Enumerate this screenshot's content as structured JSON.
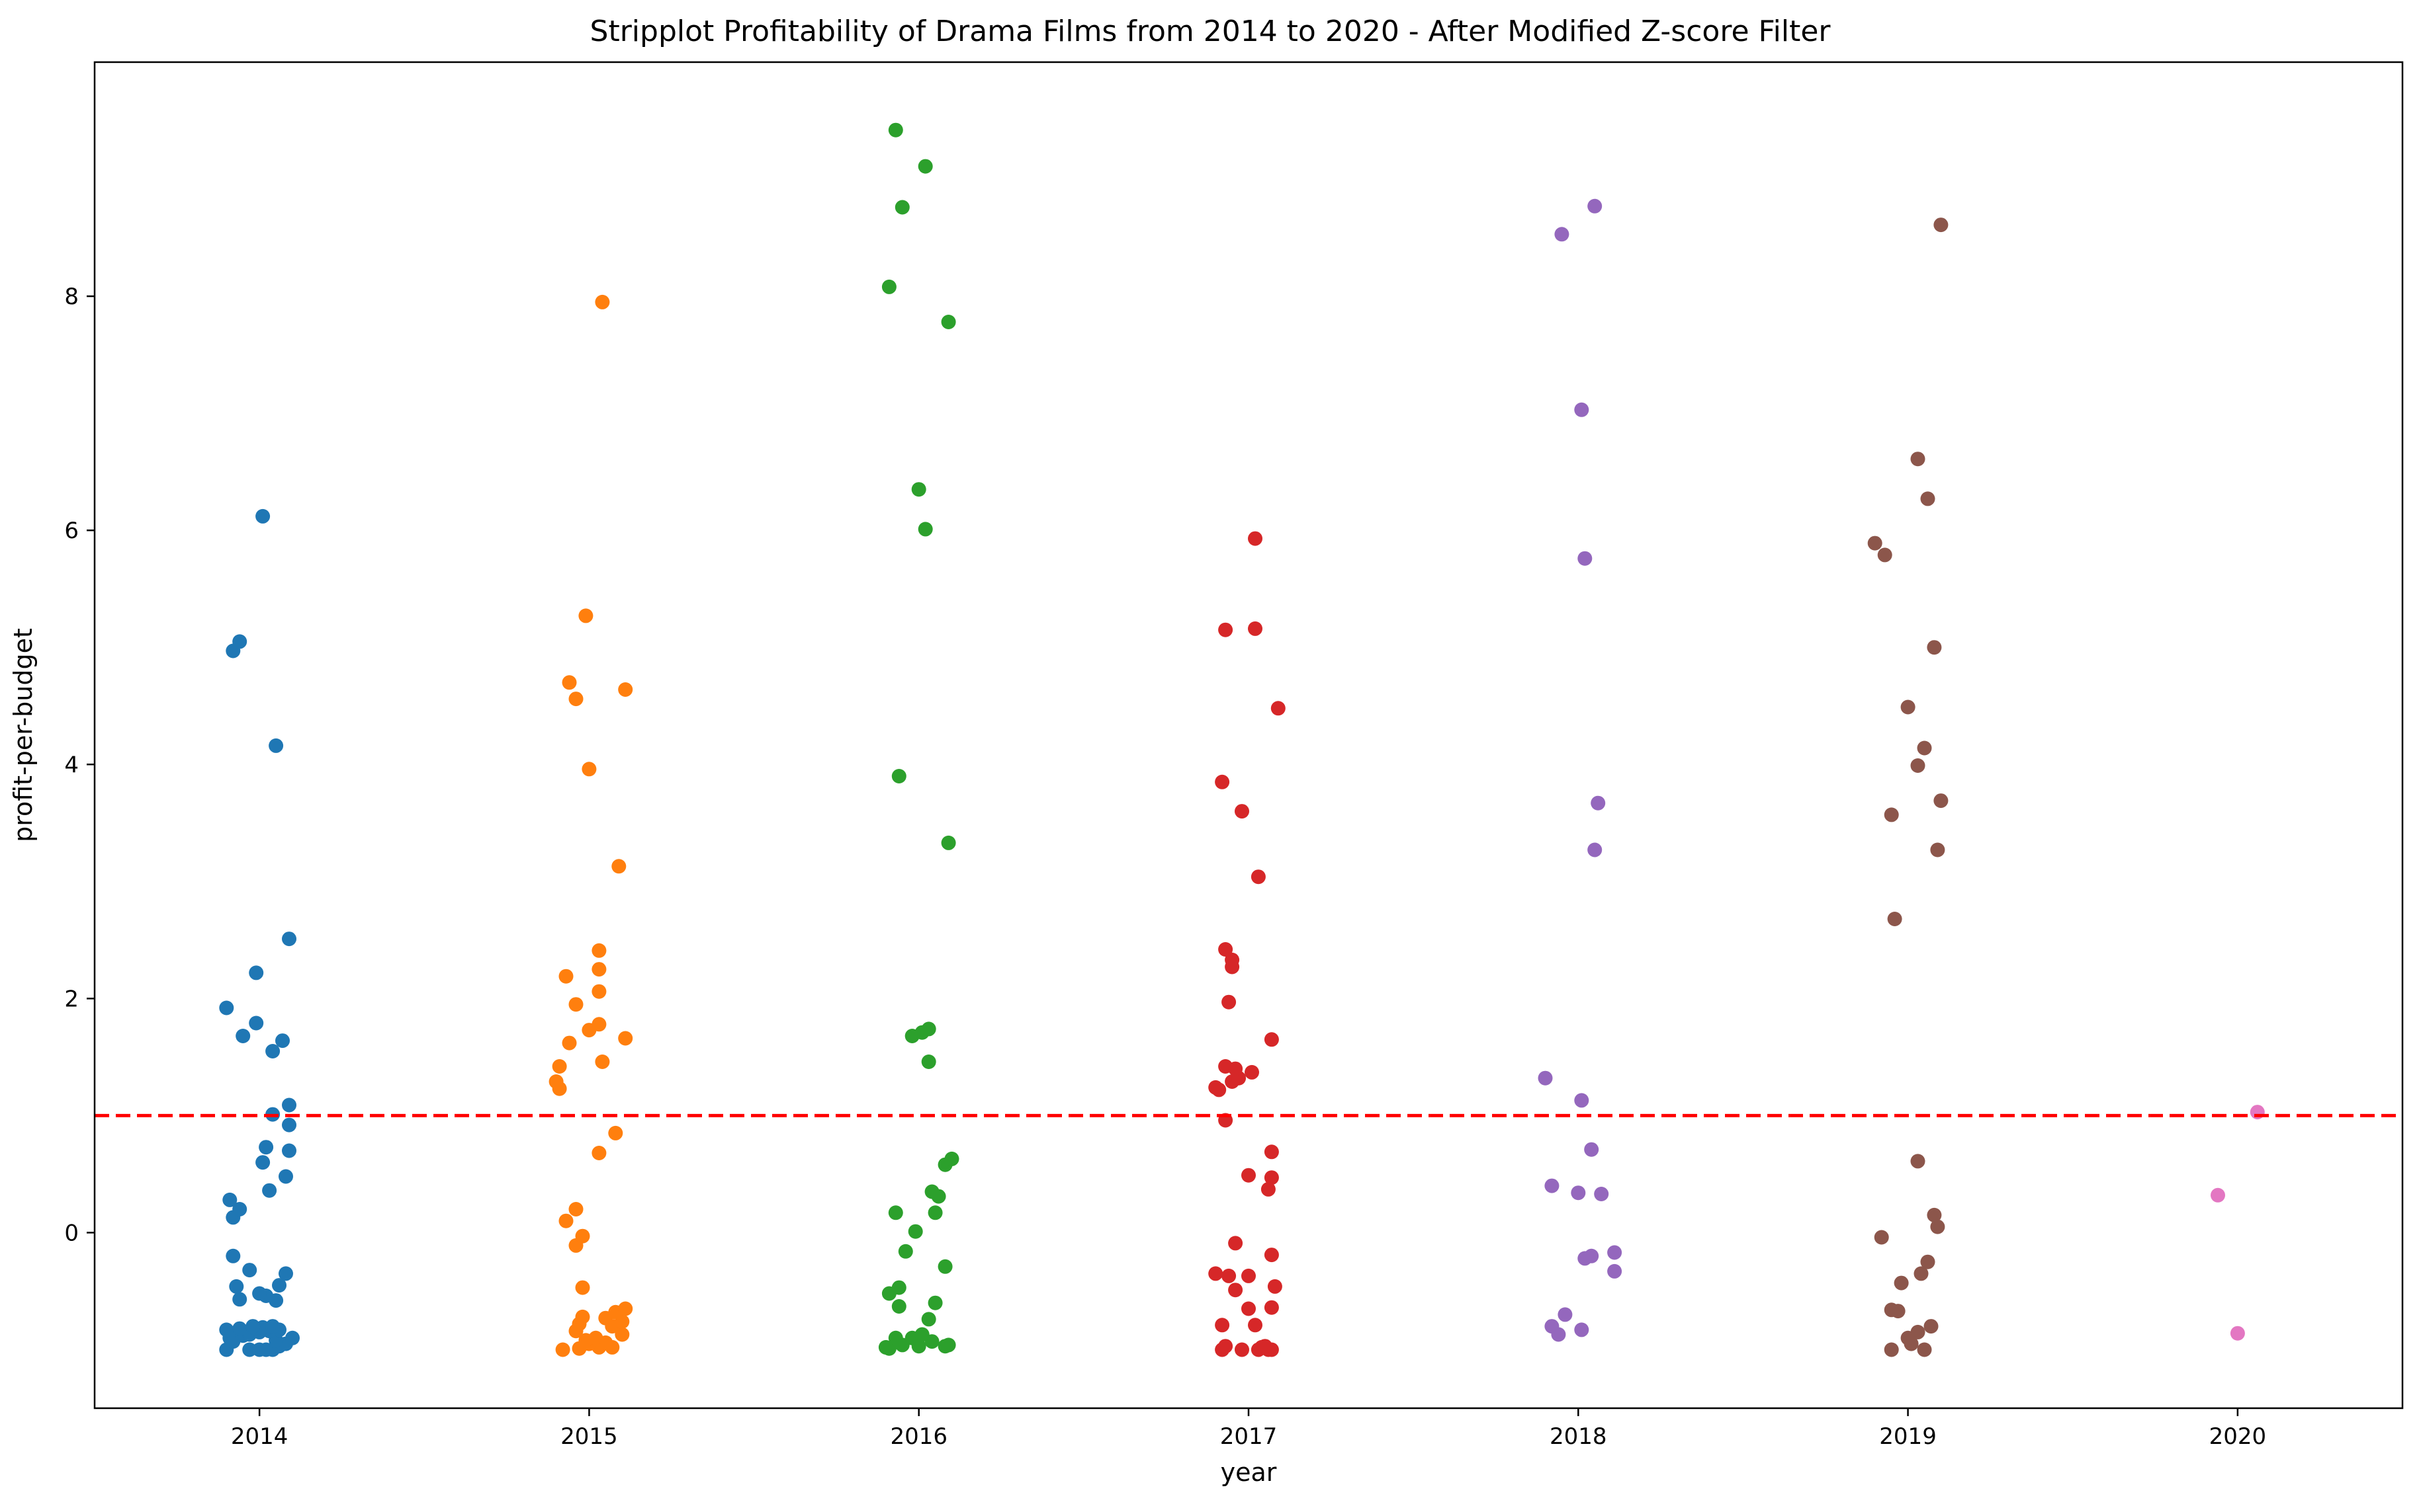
{
  "chart_data": {
    "type": "scatter",
    "subtype": "stripplot",
    "title": "Stripplot Profitability of Drama Films from 2014 to 2020 - After Modified Z-score Filter",
    "xlabel": "year",
    "ylabel": "profit-per-budget",
    "categories": [
      "2014",
      "2015",
      "2016",
      "2017",
      "2018",
      "2019",
      "2020"
    ],
    "ylim": [
      -1.5,
      10.0
    ],
    "yticks": [
      0,
      2,
      4,
      6,
      8
    ],
    "grid": false,
    "reference_line": {
      "y": 1.0,
      "color": "#ff0000",
      "style": "dashed"
    },
    "colors": [
      "#1f77b4",
      "#ff7f0e",
      "#2ca02c",
      "#d62728",
      "#9467bd",
      "#8c564b",
      "#e377c2"
    ],
    "series": [
      {
        "category": "2014",
        "points": [
          [
            -0.1,
            -1.0
          ],
          [
            -0.03,
            -1.0
          ],
          [
            0.0,
            -1.0
          ],
          [
            0.02,
            -1.0
          ],
          [
            0.04,
            -1.0
          ],
          [
            0.06,
            -0.97
          ],
          [
            0.08,
            -0.95
          ],
          [
            -0.08,
            -0.93
          ],
          [
            0.05,
            -0.92
          ],
          [
            0.1,
            -0.9
          ],
          [
            -0.09,
            -0.9
          ],
          [
            -0.05,
            -0.88
          ],
          [
            -0.03,
            -0.87
          ],
          [
            0.0,
            -0.85
          ],
          [
            0.03,
            -0.84
          ],
          [
            0.06,
            -0.83
          ],
          [
            -0.1,
            -0.83
          ],
          [
            -0.06,
            -0.82
          ],
          [
            -0.01,
            -0.82
          ],
          [
            0.01,
            -0.81
          ],
          [
            0.04,
            -0.8
          ],
          [
            -0.02,
            -0.8
          ],
          [
            0.05,
            -0.58
          ],
          [
            -0.06,
            -0.57
          ],
          [
            0.02,
            -0.54
          ],
          [
            0.0,
            -0.52
          ],
          [
            0.06,
            -0.45
          ],
          [
            -0.07,
            -0.46
          ],
          [
            0.08,
            -0.35
          ],
          [
            -0.03,
            -0.32
          ],
          [
            -0.08,
            -0.2
          ],
          [
            -0.08,
            0.13
          ],
          [
            -0.06,
            0.2
          ],
          [
            -0.09,
            0.28
          ],
          [
            0.03,
            0.36
          ],
          [
            0.08,
            0.48
          ],
          [
            0.01,
            0.6
          ],
          [
            0.09,
            0.7
          ],
          [
            0.02,
            0.73
          ],
          [
            0.09,
            0.92
          ],
          [
            0.04,
            1.01
          ],
          [
            0.09,
            1.09
          ],
          [
            0.04,
            1.55
          ],
          [
            0.07,
            1.64
          ],
          [
            -0.05,
            1.68
          ],
          [
            -0.01,
            1.79
          ],
          [
            -0.1,
            1.92
          ],
          [
            -0.01,
            2.22
          ],
          [
            0.09,
            2.51
          ],
          [
            0.05,
            4.16
          ],
          [
            -0.08,
            4.97
          ],
          [
            -0.06,
            5.05
          ],
          [
            0.01,
            6.12
          ]
        ]
      },
      {
        "category": "2015",
        "points": [
          [
            -0.08,
            -1.0
          ],
          [
            -0.03,
            -0.99
          ],
          [
            0.03,
            -0.98
          ],
          [
            0.07,
            -0.98
          ],
          [
            0.0,
            -0.95
          ],
          [
            0.05,
            -0.94
          ],
          [
            -0.01,
            -0.92
          ],
          [
            0.02,
            -0.9
          ],
          [
            0.1,
            -0.87
          ],
          [
            -0.04,
            -0.84
          ],
          [
            0.07,
            -0.8
          ],
          [
            -0.03,
            -0.78
          ],
          [
            0.1,
            -0.76
          ],
          [
            0.05,
            -0.73
          ],
          [
            -0.02,
            -0.72
          ],
          [
            0.08,
            -0.68
          ],
          [
            0.11,
            -0.65
          ],
          [
            -0.02,
            -0.47
          ],
          [
            -0.04,
            -0.11
          ],
          [
            -0.02,
            -0.03
          ],
          [
            -0.07,
            0.1
          ],
          [
            -0.04,
            0.2
          ],
          [
            0.03,
            0.68
          ],
          [
            0.08,
            0.85
          ],
          [
            -0.09,
            1.23
          ],
          [
            -0.1,
            1.29
          ],
          [
            -0.09,
            1.42
          ],
          [
            0.04,
            1.46
          ],
          [
            -0.06,
            1.62
          ],
          [
            0.11,
            1.66
          ],
          [
            0.0,
            1.73
          ],
          [
            0.03,
            1.78
          ],
          [
            -0.04,
            1.95
          ],
          [
            0.03,
            2.06
          ],
          [
            -0.07,
            2.19
          ],
          [
            0.03,
            2.25
          ],
          [
            0.03,
            2.41
          ],
          [
            0.09,
            3.13
          ],
          [
            0.0,
            3.96
          ],
          [
            -0.04,
            4.56
          ],
          [
            -0.06,
            4.7
          ],
          [
            0.11,
            4.64
          ],
          [
            -0.01,
            5.27
          ],
          [
            0.04,
            7.95
          ]
        ]
      },
      {
        "category": "2016",
        "points": [
          [
            -0.09,
            -0.99
          ],
          [
            -0.1,
            -0.98
          ],
          [
            0.0,
            -0.97
          ],
          [
            0.08,
            -0.97
          ],
          [
            -0.05,
            -0.96
          ],
          [
            0.09,
            -0.96
          ],
          [
            0.04,
            -0.93
          ],
          [
            -0.02,
            -0.9
          ],
          [
            -0.07,
            -0.9
          ],
          [
            0.01,
            -0.87
          ],
          [
            0.03,
            -0.74
          ],
          [
            -0.06,
            -0.63
          ],
          [
            0.05,
            -0.6
          ],
          [
            -0.09,
            -0.52
          ],
          [
            -0.06,
            -0.47
          ],
          [
            0.08,
            -0.29
          ],
          [
            -0.04,
            -0.16
          ],
          [
            -0.01,
            0.01
          ],
          [
            0.05,
            0.17
          ],
          [
            -0.07,
            0.17
          ],
          [
            0.06,
            0.31
          ],
          [
            0.04,
            0.35
          ],
          [
            0.08,
            0.58
          ],
          [
            0.1,
            0.63
          ],
          [
            0.03,
            1.46
          ],
          [
            -0.02,
            1.68
          ],
          [
            0.01,
            1.71
          ],
          [
            0.03,
            1.74
          ],
          [
            0.09,
            3.33
          ],
          [
            -0.06,
            3.9
          ],
          [
            0.02,
            6.01
          ],
          [
            0.0,
            6.35
          ],
          [
            0.09,
            7.78
          ],
          [
            -0.09,
            8.08
          ],
          [
            -0.05,
            8.76
          ],
          [
            0.02,
            9.11
          ],
          [
            -0.07,
            9.42
          ]
        ]
      },
      {
        "category": "2017",
        "points": [
          [
            -0.08,
            -1.0
          ],
          [
            -0.02,
            -1.0
          ],
          [
            0.03,
            -1.0
          ],
          [
            0.06,
            -1.0
          ],
          [
            0.07,
            -1.0
          ],
          [
            0.04,
            -0.98
          ],
          [
            0.05,
            -0.97
          ],
          [
            -0.07,
            -0.97
          ],
          [
            0.02,
            -0.79
          ],
          [
            -0.08,
            -0.79
          ],
          [
            0.0,
            -0.65
          ],
          [
            0.07,
            -0.64
          ],
          [
            -0.04,
            -0.49
          ],
          [
            0.08,
            -0.46
          ],
          [
            -0.06,
            -0.37
          ],
          [
            -0.1,
            -0.35
          ],
          [
            0.0,
            -0.37
          ],
          [
            0.07,
            -0.19
          ],
          [
            -0.04,
            -0.09
          ],
          [
            0.06,
            0.37
          ],
          [
            0.07,
            0.47
          ],
          [
            0.0,
            0.49
          ],
          [
            0.07,
            0.69
          ],
          [
            -0.07,
            0.96
          ],
          [
            -0.09,
            1.22
          ],
          [
            -0.1,
            1.24
          ],
          [
            -0.05,
            1.29
          ],
          [
            -0.03,
            1.32
          ],
          [
            -0.07,
            1.42
          ],
          [
            -0.04,
            1.4
          ],
          [
            0.01,
            1.37
          ],
          [
            0.07,
            1.65
          ],
          [
            -0.06,
            1.97
          ],
          [
            -0.05,
            2.27
          ],
          [
            -0.05,
            2.33
          ],
          [
            -0.07,
            2.42
          ],
          [
            0.03,
            3.04
          ],
          [
            -0.02,
            3.6
          ],
          [
            -0.08,
            3.85
          ],
          [
            0.09,
            4.48
          ],
          [
            -0.07,
            5.15
          ],
          [
            0.02,
            5.16
          ],
          [
            0.02,
            5.93
          ]
        ]
      },
      {
        "category": "2018",
        "points": [
          [
            -0.06,
            -0.87
          ],
          [
            -0.08,
            -0.8
          ],
          [
            0.01,
            -0.83
          ],
          [
            -0.04,
            -0.7
          ],
          [
            0.11,
            -0.33
          ],
          [
            0.11,
            -0.17
          ],
          [
            0.04,
            -0.2
          ],
          [
            0.02,
            -0.22
          ],
          [
            0.07,
            0.33
          ],
          [
            0.0,
            0.34
          ],
          [
            -0.08,
            0.4
          ],
          [
            0.04,
            0.71
          ],
          [
            0.01,
            1.13
          ],
          [
            -0.1,
            1.32
          ],
          [
            0.05,
            3.27
          ],
          [
            0.06,
            3.67
          ],
          [
            0.02,
            5.76
          ],
          [
            0.01,
            7.03
          ],
          [
            -0.05,
            8.53
          ],
          [
            0.05,
            8.77
          ]
        ]
      },
      {
        "category": "2019",
        "points": [
          [
            0.05,
            -1.0
          ],
          [
            -0.05,
            -1.0
          ],
          [
            0.01,
            -0.95
          ],
          [
            0.0,
            -0.9
          ],
          [
            0.03,
            -0.85
          ],
          [
            0.07,
            -0.8
          ],
          [
            -0.03,
            -0.67
          ],
          [
            -0.05,
            -0.66
          ],
          [
            -0.02,
            -0.43
          ],
          [
            0.04,
            -0.35
          ],
          [
            0.06,
            -0.25
          ],
          [
            -0.08,
            -0.04
          ],
          [
            0.09,
            0.05
          ],
          [
            0.08,
            0.15
          ],
          [
            0.03,
            0.61
          ],
          [
            -0.04,
            2.68
          ],
          [
            -0.05,
            3.57
          ],
          [
            0.09,
            3.27
          ],
          [
            0.1,
            3.69
          ],
          [
            0.03,
            3.99
          ],
          [
            0.05,
            4.14
          ],
          [
            0.0,
            4.49
          ],
          [
            0.08,
            5.0
          ],
          [
            -0.07,
            5.79
          ],
          [
            -0.1,
            5.89
          ],
          [
            0.06,
            6.27
          ],
          [
            0.03,
            6.61
          ],
          [
            0.1,
            8.61
          ]
        ]
      },
      {
        "category": "2020",
        "points": [
          [
            0.0,
            -0.86
          ],
          [
            -0.06,
            0.32
          ],
          [
            0.06,
            1.03
          ]
        ]
      }
    ]
  }
}
